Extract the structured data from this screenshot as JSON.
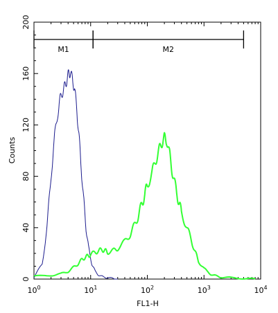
{
  "chart_data": {
    "type": "line",
    "xlabel": "FL1-H",
    "ylabel": "Counts",
    "x_scale": "log",
    "xlim": [
      1,
      10000
    ],
    "ylim": [
      0,
      200
    ],
    "x_ticks": [
      {
        "value": 1,
        "base": "10",
        "exp": "0"
      },
      {
        "value": 10,
        "base": "10",
        "exp": "1"
      },
      {
        "value": 100,
        "base": "10",
        "exp": "2"
      },
      {
        "value": 1000,
        "base": "10",
        "exp": "3"
      },
      {
        "value": 10000,
        "base": "10",
        "exp": "4"
      }
    ],
    "y_ticks": [
      0,
      40,
      80,
      120,
      160,
      200
    ],
    "grid": false,
    "markers": [
      {
        "label": "M1",
        "x_start": 1,
        "x_end": 11
      },
      {
        "label": "M2",
        "x_start": 11,
        "x_end": 5000
      }
    ],
    "series": [
      {
        "color": "#1a1a8c",
        "x": [
          1.0,
          1.4,
          1.7,
          2.0,
          2.3,
          2.6,
          2.9,
          3.2,
          3.5,
          3.8,
          4.1,
          4.4,
          4.8,
          5.2,
          5.7,
          6.2,
          6.8,
          7.5,
          8.3,
          9.2,
          10.5,
          12,
          14,
          17,
          20,
          25,
          30
        ],
        "y": [
          1,
          12,
          40,
          80,
          110,
          128,
          140,
          146,
          150,
          155,
          160,
          161,
          155,
          148,
          132,
          112,
          88,
          62,
          40,
          24,
          12,
          6,
          3,
          1.5,
          1,
          0.5,
          0
        ]
      },
      {
        "color": "#33ff33",
        "x": [
          1.0,
          2.0,
          3.0,
          4.0,
          5.0,
          6.0,
          7.0,
          8.0,
          9.0,
          10.0,
          12.0,
          14.0,
          16.0,
          18.0,
          20.0,
          25.0,
          30.0,
          40.0,
          50.0,
          60.0,
          70.0,
          80.0,
          90.0,
          100.0,
          120.0,
          140.0,
          160.0,
          180.0,
          200.0,
          220.0,
          250.0,
          280.0,
          320.0,
          360.0,
          400.0,
          500.0,
          600.0,
          700.0,
          800.0,
          1000.0,
          1300.0,
          1600.0,
          2000.0,
          3000.0,
          5000.0,
          8000.0
        ],
        "y": [
          2,
          3,
          4,
          6,
          9,
          12,
          15,
          17,
          18,
          19,
          21,
          22,
          23,
          22,
          21,
          22,
          24,
          29,
          35,
          42,
          50,
          58,
          66,
          73,
          82,
          92,
          100,
          106,
          110,
          108,
          96,
          82,
          70,
          60,
          52,
          40,
          30,
          21,
          14,
          8,
          4,
          2.5,
          1.5,
          1,
          0.5,
          0
        ]
      }
    ]
  }
}
